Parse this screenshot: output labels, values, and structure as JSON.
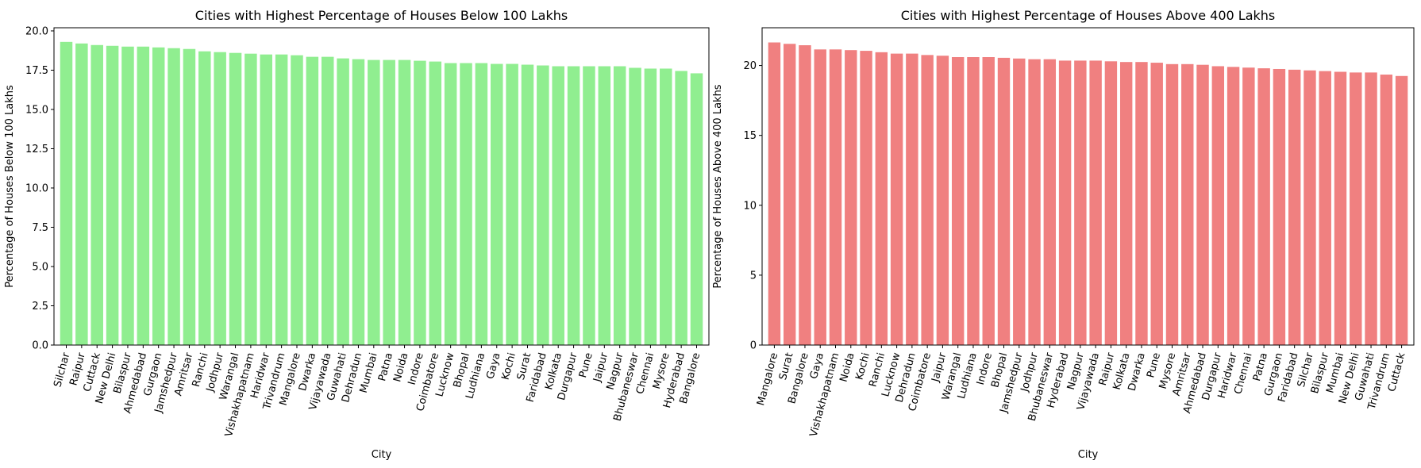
{
  "chart_data": [
    {
      "type": "bar",
      "title": "Cities with Highest Percentage of Houses Below 100 Lakhs",
      "xlabel": "City",
      "ylabel": "Percentage of Houses Below 100 Lakhs",
      "color": "#90ee90",
      "ylim": [
        0,
        20.2
      ],
      "yticks": [
        0.0,
        2.5,
        5.0,
        7.5,
        10.0,
        12.5,
        15.0,
        17.5,
        20.0
      ],
      "ytick_labels": [
        "0.0",
        "2.5",
        "5.0",
        "7.5",
        "10.0",
        "12.5",
        "15.0",
        "17.5",
        "20.0"
      ],
      "categories": [
        "Silchar",
        "Raipur",
        "Cuttack",
        "New Delhi",
        "Bilaspur",
        "Ahmedabad",
        "Gurgaon",
        "Jamshedpur",
        "Amritsar",
        "Ranchi",
        "Jodhpur",
        "Warangal",
        "Vishakhapatnam",
        "Haridwar",
        "Trivandrum",
        "Mangalore",
        "Dwarka",
        "Vijayawada",
        "Guwahati",
        "Dehradun",
        "Mumbai",
        "Patna",
        "Noida",
        "Indore",
        "Coimbatore",
        "Lucknow",
        "Bhopal",
        "Ludhiana",
        "Gaya",
        "Kochi",
        "Surat",
        "Faridabad",
        "Kolkata",
        "Durgapur",
        "Pune",
        "Jaipur",
        "Nagpur",
        "Bhubaneswar",
        "Chennai",
        "Mysore",
        "Hyderabad",
        "Bangalore"
      ],
      "values": [
        19.3,
        19.2,
        19.1,
        19.05,
        19.0,
        19.0,
        18.95,
        18.9,
        18.85,
        18.7,
        18.65,
        18.6,
        18.55,
        18.5,
        18.5,
        18.45,
        18.35,
        18.35,
        18.25,
        18.2,
        18.15,
        18.15,
        18.15,
        18.1,
        18.05,
        17.95,
        17.95,
        17.95,
        17.9,
        17.9,
        17.85,
        17.8,
        17.75,
        17.75,
        17.75,
        17.75,
        17.75,
        17.65,
        17.6,
        17.6,
        17.45,
        17.3
      ],
      "grid": false
    },
    {
      "type": "bar",
      "title": "Cities with Highest Percentage of Houses Above 400 Lakhs",
      "xlabel": "City",
      "ylabel": "Percentage of Houses Above 400 Lakhs",
      "color": "#f08080",
      "ylim": [
        0,
        22.7
      ],
      "yticks": [
        0,
        5,
        10,
        15,
        20
      ],
      "ytick_labels": [
        "0",
        "5",
        "10",
        "15",
        "20"
      ],
      "categories": [
        "Mangalore",
        "Surat",
        "Bangalore",
        "Gaya",
        "Vishakhapatnam",
        "Noida",
        "Kochi",
        "Ranchi",
        "Lucknow",
        "Dehradun",
        "Coimbatore",
        "Jaipur",
        "Warangal",
        "Ludhiana",
        "Indore",
        "Bhopal",
        "Jamshedpur",
        "Jodhpur",
        "Bhubaneswar",
        "Hyderabad",
        "Nagpur",
        "Vijayawada",
        "Raipur",
        "Kolkata",
        "Dwarka",
        "Pune",
        "Mysore",
        "Amritsar",
        "Ahmedabad",
        "Durgapur",
        "Haridwar",
        "Chennai",
        "Patna",
        "Gurgaon",
        "Faridabad",
        "Silchar",
        "Bilaspur",
        "Mumbai",
        "New Delhi",
        "Guwahati",
        "Trivandrum",
        "Cuttack"
      ],
      "values": [
        21.65,
        21.55,
        21.45,
        21.15,
        21.15,
        21.1,
        21.05,
        20.95,
        20.85,
        20.85,
        20.75,
        20.7,
        20.6,
        20.6,
        20.6,
        20.55,
        20.5,
        20.45,
        20.45,
        20.35,
        20.35,
        20.35,
        20.3,
        20.25,
        20.25,
        20.2,
        20.1,
        20.1,
        20.05,
        19.95,
        19.9,
        19.85,
        19.8,
        19.75,
        19.7,
        19.65,
        19.6,
        19.55,
        19.5,
        19.5,
        19.35,
        19.25
      ],
      "grid": false
    }
  ]
}
